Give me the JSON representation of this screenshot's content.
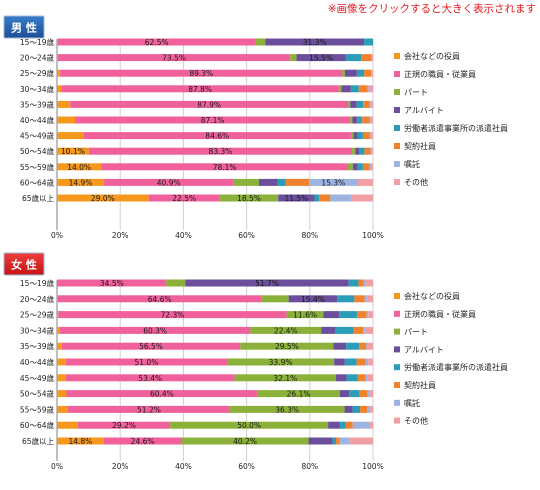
{
  "header_note": "※画像をクリックすると大きく表示されます",
  "legend": [
    "会社などの役員",
    "正規の職員・従業員",
    "パート",
    "アルバイト",
    "労働者派遣事業所の派遣社員",
    "契約社員",
    "嘱託",
    "その他"
  ],
  "colors": [
    "#f5981d",
    "#f0609a",
    "#8bb13a",
    "#6b4f9c",
    "#2b9db7",
    "#f0822e",
    "#9db3e0",
    "#f0a0a4"
  ],
  "x_ticks": [
    "0%",
    "20%",
    "40%",
    "60%",
    "80%",
    "100%"
  ],
  "chart_data": [
    {
      "type": "bar",
      "title": "男 性",
      "orientation": "horizontal",
      "stacked": "percent",
      "xlim": [
        0,
        100
      ],
      "categories": [
        "15～19歳",
        "20～24歳",
        "25～29歳",
        "30～34歳",
        "35～39歳",
        "40～44歳",
        "45～49歳",
        "50～54歳",
        "55～59歳",
        "60～64歳",
        "65歳以上"
      ],
      "series": [
        {
          "name": "会社などの役員",
          "values": [
            0.3,
            0.3,
            1.0,
            1.4,
            4.2,
            5.7,
            8.4,
            10.1,
            14.0,
            14.9,
            29.0
          ]
        },
        {
          "name": "正規の職員・従業員",
          "values": [
            62.5,
            73.5,
            89.3,
            87.8,
            87.9,
            87.1,
            84.6,
            83.3,
            78.1,
            40.9,
            22.5
          ]
        },
        {
          "name": "パート",
          "values": [
            3.1,
            2.0,
            0.8,
            0.8,
            0.7,
            0.7,
            0.8,
            1.0,
            1.5,
            8.1,
            18.5
          ]
        },
        {
          "name": "アルバイト",
          "values": [
            31.3,
            15.5,
            3.8,
            3.0,
            2.0,
            1.5,
            1.4,
            1.3,
            1.6,
            5.9,
            11.5
          ]
        },
        {
          "name": "労働者派遣事業所の派遣社員",
          "values": [
            2.8,
            5.0,
            2.3,
            2.5,
            2.1,
            1.6,
            1.6,
            1.6,
            1.6,
            2.5,
            1.5
          ]
        },
        {
          "name": "契約社員",
          "values": [
            0.0,
            3.2,
            2.2,
            2.8,
            2.1,
            2.3,
            2.1,
            1.9,
            2.1,
            7.5,
            3.5
          ]
        },
        {
          "name": "嘱託",
          "values": [
            0.0,
            0.0,
            0.1,
            0.3,
            0.3,
            0.3,
            0.3,
            0.4,
            0.6,
            15.3,
            6.5
          ]
        },
        {
          "name": "その他",
          "values": [
            0.0,
            0.5,
            0.5,
            1.4,
            0.7,
            0.8,
            0.8,
            0.4,
            0.5,
            4.9,
            7.0
          ]
        }
      ],
      "labels": [
        [
          null,
          "62.5%",
          null,
          "31.3%",
          null,
          null,
          null,
          null
        ],
        [
          null,
          "73.5%",
          null,
          "15.5%",
          null,
          null,
          null,
          null
        ],
        [
          null,
          "89.3%",
          null,
          null,
          null,
          null,
          null,
          null
        ],
        [
          null,
          "87.8%",
          null,
          null,
          null,
          null,
          null,
          null
        ],
        [
          null,
          "87.9%",
          null,
          null,
          null,
          null,
          null,
          null
        ],
        [
          null,
          "87.1%",
          null,
          null,
          null,
          null,
          null,
          null
        ],
        [
          null,
          "84.6%",
          null,
          null,
          null,
          null,
          null,
          null
        ],
        [
          "10.1%",
          "83.3%",
          null,
          null,
          null,
          null,
          null,
          null
        ],
        [
          "14.0%",
          "78.1%",
          null,
          null,
          null,
          null,
          null,
          null
        ],
        [
          "14.9%",
          "40.9%",
          null,
          null,
          null,
          null,
          "15.3%",
          null
        ],
        [
          "29.0%",
          "22.5%",
          "18.5%",
          "11.5%",
          null,
          null,
          null,
          null
        ]
      ]
    },
    {
      "type": "bar",
      "title": "女 性",
      "orientation": "horizontal",
      "stacked": "percent",
      "xlim": [
        0,
        100
      ],
      "categories": [
        "15～19歳",
        "20～24歳",
        "25～29歳",
        "30～34歳",
        "35～39歳",
        "40～44歳",
        "45～49歳",
        "50～54歳",
        "55～59歳",
        "60～64歳",
        "65歳以上"
      ],
      "series": [
        {
          "name": "会社などの役員",
          "values": [
            0.1,
            0.2,
            0.4,
            0.9,
            1.5,
            2.8,
            2.8,
            3.0,
            3.5,
            6.6,
            14.8
          ]
        },
        {
          "name": "正規の職員・従業員",
          "values": [
            34.5,
            64.6,
            72.3,
            60.3,
            56.5,
            51.0,
            53.4,
            60.4,
            51.2,
            29.2,
            24.6
          ]
        },
        {
          "name": "パート",
          "values": [
            6.0,
            8.5,
            11.6,
            22.4,
            29.5,
            33.9,
            32.1,
            26.1,
            36.3,
            50.0,
            40.2
          ]
        },
        {
          "name": "アルバイト",
          "values": [
            51.7,
            15.4,
            5.0,
            4.6,
            4.0,
            3.4,
            3.3,
            3.0,
            2.5,
            3.6,
            7.6
          ]
        },
        {
          "name": "労働者派遣事業所の派遣社員",
          "values": [
            3.1,
            5.4,
            5.7,
            5.6,
            4.1,
            3.7,
            3.5,
            3.3,
            2.4,
            2.0,
            1.1
          ]
        },
        {
          "name": "契約社員",
          "values": [
            1.7,
            3.3,
            3.0,
            3.1,
            2.3,
            2.9,
            2.6,
            2.5,
            2.3,
            2.2,
            1.2
          ]
        },
        {
          "name": "嘱託",
          "values": [
            0.7,
            0.8,
            0.5,
            0.6,
            0.5,
            0.8,
            0.6,
            0.7,
            0.9,
            5.3,
            3.0
          ]
        },
        {
          "name": "その他",
          "values": [
            2.2,
            1.8,
            1.5,
            2.5,
            1.6,
            1.5,
            1.7,
            1.0,
            0.9,
            1.1,
            7.5
          ]
        }
      ],
      "labels": [
        [
          null,
          "34.5%",
          null,
          "51.7%",
          null,
          null,
          null,
          null
        ],
        [
          null,
          "64.6%",
          null,
          "15.4%",
          null,
          null,
          null,
          null
        ],
        [
          null,
          "72.3%",
          "11.6%",
          null,
          null,
          null,
          null,
          null
        ],
        [
          null,
          "60.3%",
          "22.4%",
          null,
          null,
          null,
          null,
          null
        ],
        [
          null,
          "56.5%",
          "29.5%",
          null,
          null,
          null,
          null,
          null
        ],
        [
          null,
          "51.0%",
          "33.9%",
          null,
          null,
          null,
          null,
          null
        ],
        [
          null,
          "53.4%",
          "32.1%",
          null,
          null,
          null,
          null,
          null
        ],
        [
          null,
          "60.4%",
          "26.1%",
          null,
          null,
          null,
          null,
          null
        ],
        [
          null,
          "51.2%",
          "36.3%",
          null,
          null,
          null,
          null,
          null
        ],
        [
          null,
          "29.2%",
          "50.0%",
          null,
          null,
          null,
          null,
          null
        ],
        [
          "14.8%",
          "24.6%",
          "40.2%",
          null,
          null,
          null,
          null,
          null
        ]
      ]
    }
  ]
}
